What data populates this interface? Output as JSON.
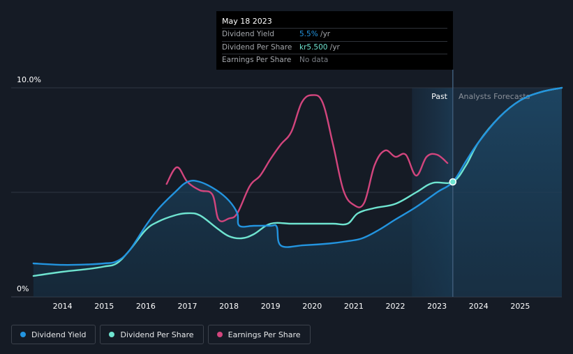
{
  "chart_data": {
    "type": "line",
    "y_axis": {
      "top_label": "10.0%",
      "bottom_label": "0%",
      "ylim": [
        0,
        10
      ]
    },
    "x_ticks": [
      "2014",
      "2015",
      "2016",
      "2017",
      "2018",
      "2019",
      "2020",
      "2021",
      "2022",
      "2023",
      "2024",
      "2025"
    ],
    "xlim": [
      2013.0,
      2026.0
    ],
    "zones": {
      "past_label": "Past",
      "forecast_label": "Analysts Forecasts",
      "past_start": 2022.4,
      "divider": 2023.38
    },
    "highlight_point": {
      "x": 2023.38,
      "y": 5.5
    },
    "series": [
      {
        "name": "Dividend Yield",
        "color": "#2394df",
        "points": [
          [
            2013.3,
            1.6
          ],
          [
            2014.0,
            1.53
          ],
          [
            2014.6,
            1.55
          ],
          [
            2015.0,
            1.6
          ],
          [
            2015.3,
            1.7
          ],
          [
            2015.6,
            2.2
          ],
          [
            2016.0,
            3.4
          ],
          [
            2016.3,
            4.2
          ],
          [
            2016.7,
            5.0
          ],
          [
            2017.0,
            5.5
          ],
          [
            2017.3,
            5.5
          ],
          [
            2017.7,
            5.1
          ],
          [
            2018.0,
            4.6
          ],
          [
            2018.2,
            4.0
          ],
          [
            2018.25,
            3.4
          ],
          [
            2018.6,
            3.4
          ],
          [
            2019.0,
            3.4
          ],
          [
            2019.15,
            3.35
          ],
          [
            2019.25,
            2.45
          ],
          [
            2019.8,
            2.47
          ],
          [
            2020.4,
            2.55
          ],
          [
            2020.8,
            2.65
          ],
          [
            2021.2,
            2.8
          ],
          [
            2021.6,
            3.2
          ],
          [
            2022.0,
            3.7
          ],
          [
            2022.5,
            4.3
          ],
          [
            2023.0,
            5.0
          ],
          [
            2023.38,
            5.5
          ],
          [
            2023.7,
            6.5
          ],
          [
            2024.0,
            7.4
          ],
          [
            2024.5,
            8.6
          ],
          [
            2025.0,
            9.4
          ],
          [
            2025.5,
            9.8
          ],
          [
            2026.0,
            10.0
          ]
        ]
      },
      {
        "name": "Dividend Per Share",
        "color": "#6fe4d0",
        "points": [
          [
            2013.3,
            1.0
          ],
          [
            2014.0,
            1.2
          ],
          [
            2014.6,
            1.33
          ],
          [
            2015.0,
            1.45
          ],
          [
            2015.3,
            1.6
          ],
          [
            2015.6,
            2.2
          ],
          [
            2016.0,
            3.2
          ],
          [
            2016.3,
            3.6
          ],
          [
            2016.7,
            3.9
          ],
          [
            2017.0,
            4.0
          ],
          [
            2017.3,
            3.9
          ],
          [
            2017.7,
            3.3
          ],
          [
            2018.0,
            2.9
          ],
          [
            2018.3,
            2.8
          ],
          [
            2018.6,
            3.0
          ],
          [
            2019.0,
            3.5
          ],
          [
            2019.5,
            3.5
          ],
          [
            2020.0,
            3.5
          ],
          [
            2020.5,
            3.5
          ],
          [
            2020.85,
            3.5
          ],
          [
            2021.1,
            4.0
          ],
          [
            2021.5,
            4.25
          ],
          [
            2022.0,
            4.45
          ],
          [
            2022.5,
            5.0
          ],
          [
            2022.9,
            5.45
          ],
          [
            2023.38,
            5.5
          ],
          [
            2023.7,
            6.3
          ],
          [
            2024.0,
            7.4
          ],
          [
            2024.5,
            8.6
          ],
          [
            2025.0,
            9.4
          ],
          [
            2025.5,
            9.8
          ],
          [
            2026.0,
            10.0
          ]
        ]
      },
      {
        "name": "Earnings Per Share",
        "color": "#d2457d",
        "points": [
          [
            2016.5,
            5.4
          ],
          [
            2016.75,
            6.2
          ],
          [
            2017.0,
            5.5
          ],
          [
            2017.3,
            5.1
          ],
          [
            2017.6,
            4.9
          ],
          [
            2017.75,
            3.7
          ],
          [
            2018.0,
            3.75
          ],
          [
            2018.2,
            4.0
          ],
          [
            2018.5,
            5.3
          ],
          [
            2018.75,
            5.8
          ],
          [
            2019.0,
            6.6
          ],
          [
            2019.25,
            7.3
          ],
          [
            2019.5,
            7.9
          ],
          [
            2019.75,
            9.3
          ],
          [
            2020.0,
            9.65
          ],
          [
            2020.25,
            9.3
          ],
          [
            2020.5,
            7.3
          ],
          [
            2020.75,
            5.1
          ],
          [
            2021.0,
            4.4
          ],
          [
            2021.25,
            4.5
          ],
          [
            2021.5,
            6.3
          ],
          [
            2021.75,
            7.0
          ],
          [
            2022.0,
            6.7
          ],
          [
            2022.25,
            6.8
          ],
          [
            2022.5,
            5.8
          ],
          [
            2022.75,
            6.7
          ],
          [
            2023.0,
            6.8
          ],
          [
            2023.25,
            6.4
          ]
        ]
      }
    ]
  },
  "tooltip": {
    "date": "May 18 2023",
    "rows": [
      {
        "label": "Dividend Yield",
        "value": "5.5%",
        "unit": " /yr",
        "color": "#2394df"
      },
      {
        "label": "Dividend Per Share",
        "value": "kr5.500",
        "unit": " /yr",
        "color": "#6fe4d0"
      },
      {
        "label": "Earnings Per Share",
        "value": "No data",
        "unit": "",
        "color": "#7a7e85"
      }
    ]
  },
  "legend": [
    {
      "label": "Dividend Yield",
      "color": "#2394df"
    },
    {
      "label": "Dividend Per Share",
      "color": "#6fe4d0"
    },
    {
      "label": "Earnings Per Share",
      "color": "#d2457d"
    }
  ]
}
